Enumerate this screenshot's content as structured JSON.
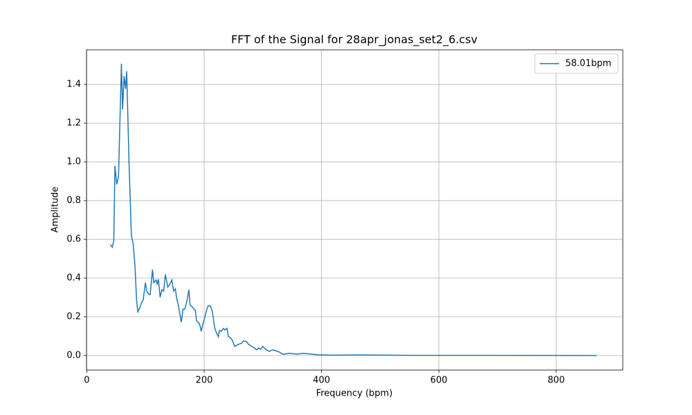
{
  "chart_data": {
    "type": "line",
    "title": "FFT of the Signal for 28apr_jonas_set2_6.csv",
    "xlabel": "Frequency (bpm)",
    "ylabel": "Amplitude",
    "x": [
      40,
      43.5,
      46,
      48,
      51,
      54,
      59,
      61,
      63.5,
      66,
      68,
      72,
      76,
      79,
      82,
      85,
      87,
      91,
      93,
      96,
      100,
      102,
      106,
      108,
      112,
      114,
      118,
      120,
      122,
      125,
      128,
      131,
      134,
      138,
      141,
      145,
      148,
      151,
      153,
      156,
      159,
      161,
      164,
      167,
      171,
      174,
      176,
      181,
      185,
      187,
      191,
      193,
      195,
      198,
      200,
      204,
      207,
      211,
      214,
      218,
      220,
      224,
      226,
      229,
      233,
      235,
      239,
      241,
      245,
      248,
      252,
      258,
      264,
      267,
      272,
      276,
      281,
      286,
      289,
      293,
      296,
      300,
      305,
      311,
      316,
      322,
      328,
      334,
      346,
      358,
      369,
      393,
      416,
      464,
      558,
      675,
      869
    ],
    "series": [
      {
        "name": "58.01bpm",
        "color": "#1f77b4",
        "values": [
          0.573,
          0.559,
          0.594,
          0.98,
          0.884,
          0.92,
          1.507,
          1.27,
          1.443,
          1.378,
          1.468,
          0.995,
          0.62,
          0.576,
          0.469,
          0.279,
          0.226,
          0.25,
          0.272,
          0.286,
          0.376,
          0.333,
          0.315,
          0.315,
          0.444,
          0.376,
          0.39,
          0.369,
          0.394,
          0.301,
          0.34,
          0.333,
          0.419,
          0.354,
          0.365,
          0.39,
          0.333,
          0.344,
          0.297,
          0.261,
          0.208,
          0.172,
          0.24,
          0.24,
          0.286,
          0.34,
          0.261,
          0.247,
          0.233,
          0.179,
          0.168,
          0.154,
          0.125,
          0.165,
          0.183,
          0.233,
          0.258,
          0.254,
          0.226,
          0.143,
          0.125,
          0.097,
          0.129,
          0.125,
          0.14,
          0.132,
          0.14,
          0.1,
          0.09,
          0.079,
          0.047,
          0.057,
          0.064,
          0.075,
          0.072,
          0.057,
          0.047,
          0.039,
          0.029,
          0.039,
          0.032,
          0.047,
          0.032,
          0.021,
          0.029,
          0.025,
          0.018,
          0.007,
          0.011,
          0.007,
          0.011,
          0.004,
          0.002,
          0.003,
          0.001,
          0.001,
          0
        ]
      }
    ],
    "xlim": [
      -0.5,
      913.5
    ],
    "ylim": [
      -0.075,
      1.579
    ],
    "xticks": [
      0,
      200,
      400,
      600,
      800
    ],
    "yticks": [
      {
        "value": 0,
        "label": "0.0"
      },
      {
        "value": 0.2,
        "label": "0.2"
      },
      {
        "value": 0.4,
        "label": "0.4"
      },
      {
        "value": 0.6,
        "label": "0.6"
      },
      {
        "value": 0.8,
        "label": "0.8"
      },
      {
        "value": 1.0,
        "label": "1.0"
      },
      {
        "value": 1.2,
        "label": "1.2"
      },
      {
        "value": 1.4,
        "label": "1.4"
      }
    ],
    "grid": true,
    "legend": "upper right"
  }
}
